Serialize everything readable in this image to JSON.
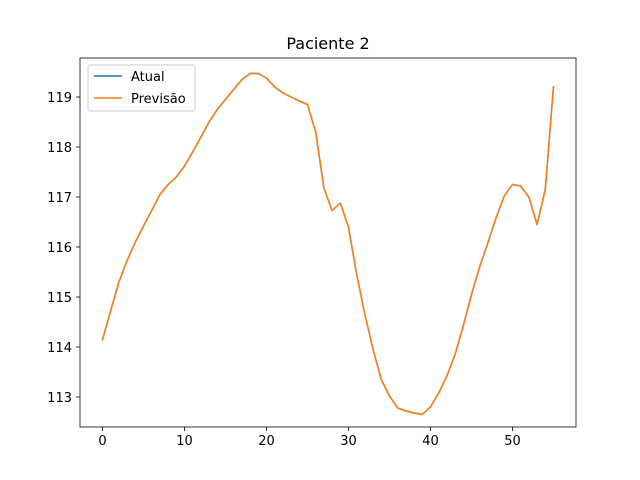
{
  "chart_data": {
    "type": "line",
    "title": "Paciente 2",
    "xlabel": "",
    "ylabel": "",
    "xlim": [
      -2.75,
      57.75
    ],
    "ylim": [
      112.4,
      119.78
    ],
    "xticks": [
      0,
      10,
      20,
      30,
      40,
      50
    ],
    "yticks": [
      113,
      114,
      115,
      116,
      117,
      118,
      119
    ],
    "grid": false,
    "legend_position": "top-left",
    "colors": {
      "Atual": "#1f77b4",
      "Previsão": "#ff7f0e"
    },
    "x": [
      0,
      1,
      2,
      3,
      4,
      5,
      6,
      7,
      8,
      9,
      10,
      11,
      12,
      13,
      14,
      15,
      16,
      17,
      18,
      19,
      20,
      21,
      22,
      23,
      24,
      25,
      26,
      27,
      28,
      29,
      30,
      31,
      32,
      33,
      34,
      35,
      36,
      37,
      38,
      39,
      40,
      41,
      42,
      43,
      44,
      45,
      46,
      47,
      48,
      49,
      50,
      51,
      52,
      53,
      54,
      55
    ],
    "series": [
      {
        "name": "Atual",
        "values": [
          114.15,
          114.73,
          115.3,
          115.73,
          116.1,
          116.42,
          116.73,
          117.05,
          117.25,
          117.4,
          117.62,
          117.9,
          118.2,
          118.5,
          118.75,
          118.95,
          119.15,
          119.35,
          119.47,
          119.47,
          119.38,
          119.2,
          119.08,
          119.0,
          118.92,
          118.85,
          118.3,
          117.18,
          116.73,
          116.88,
          116.4,
          115.45,
          114.65,
          113.95,
          113.35,
          113.02,
          112.78,
          112.72,
          112.68,
          112.65,
          112.8,
          113.08,
          113.42,
          113.85,
          114.42,
          115.05,
          115.6,
          116.08,
          116.58,
          117.02,
          117.25,
          117.22,
          117.0,
          116.45,
          117.15,
          119.2
        ]
      },
      {
        "name": "Previsão",
        "values": [
          114.15,
          114.73,
          115.3,
          115.73,
          116.1,
          116.42,
          116.73,
          117.05,
          117.25,
          117.4,
          117.62,
          117.9,
          118.2,
          118.5,
          118.75,
          118.95,
          119.15,
          119.35,
          119.47,
          119.47,
          119.38,
          119.2,
          119.08,
          119.0,
          118.92,
          118.85,
          118.3,
          117.18,
          116.73,
          116.88,
          116.4,
          115.45,
          114.65,
          113.95,
          113.35,
          113.02,
          112.78,
          112.72,
          112.68,
          112.65,
          112.8,
          113.08,
          113.42,
          113.85,
          114.42,
          115.05,
          115.6,
          116.08,
          116.58,
          117.02,
          117.25,
          117.22,
          117.0,
          116.45,
          117.15,
          119.2
        ]
      }
    ]
  }
}
